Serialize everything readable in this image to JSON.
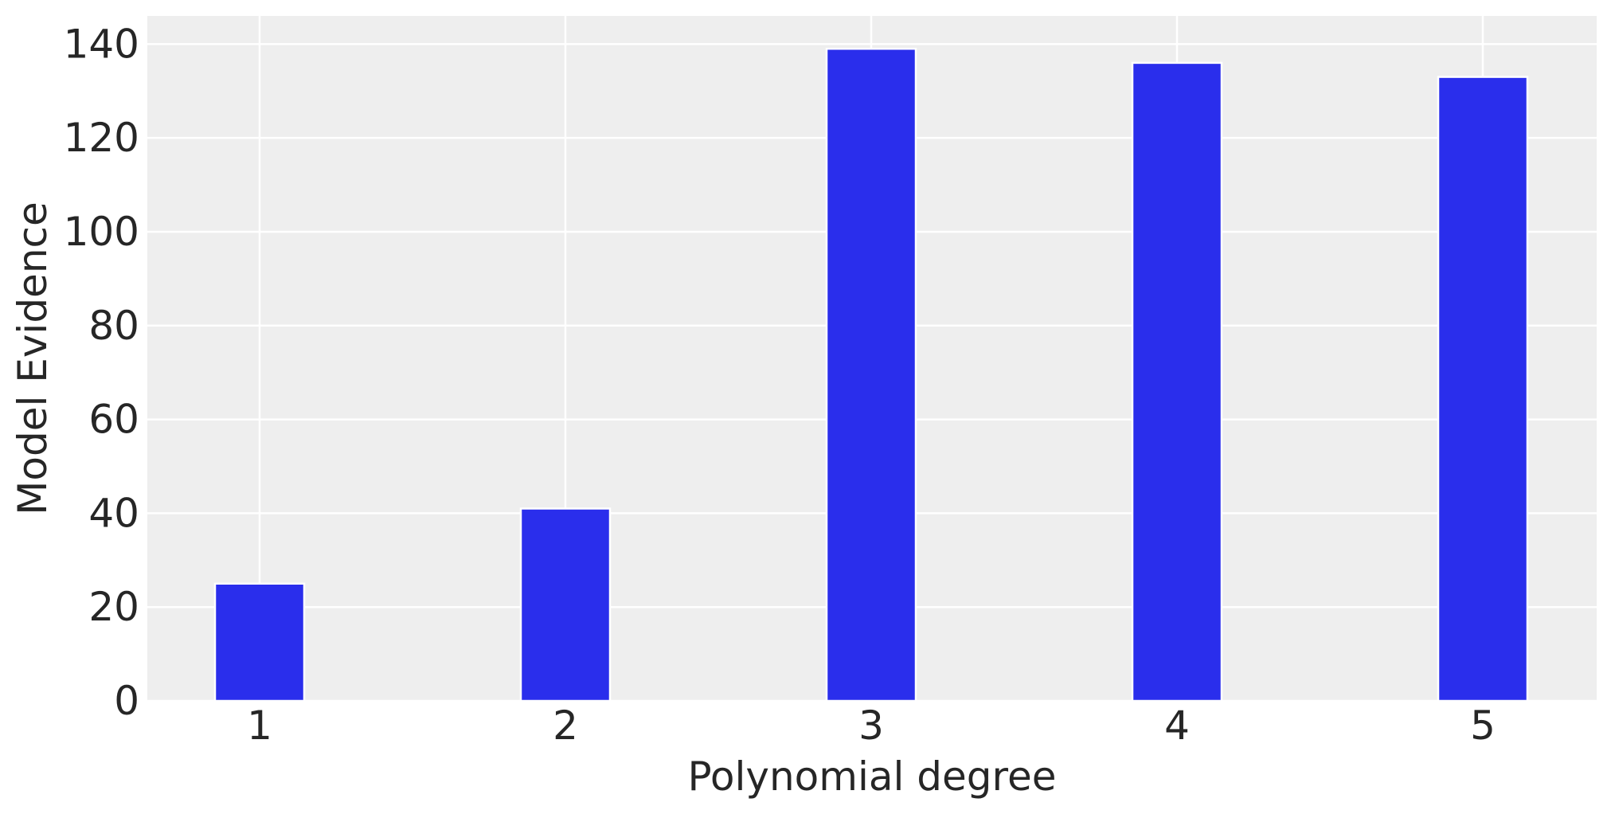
{
  "chart_data": {
    "type": "bar",
    "title": "",
    "xlabel": "Polynomial degree",
    "ylabel": "Model Evidence",
    "categories": [
      "1",
      "2",
      "3",
      "4",
      "5"
    ],
    "values": [
      25,
      41,
      139,
      136,
      133
    ],
    "ylim": [
      0,
      146
    ],
    "yticks": [
      "0",
      "20",
      "40",
      "60",
      "80",
      "100",
      "120",
      "140"
    ],
    "grid": true,
    "legend": "none",
    "colors": {
      "bar": "#2a2eec",
      "plot_background": "#eeeeee",
      "grid": "#ffffff",
      "text": "#262626"
    }
  }
}
